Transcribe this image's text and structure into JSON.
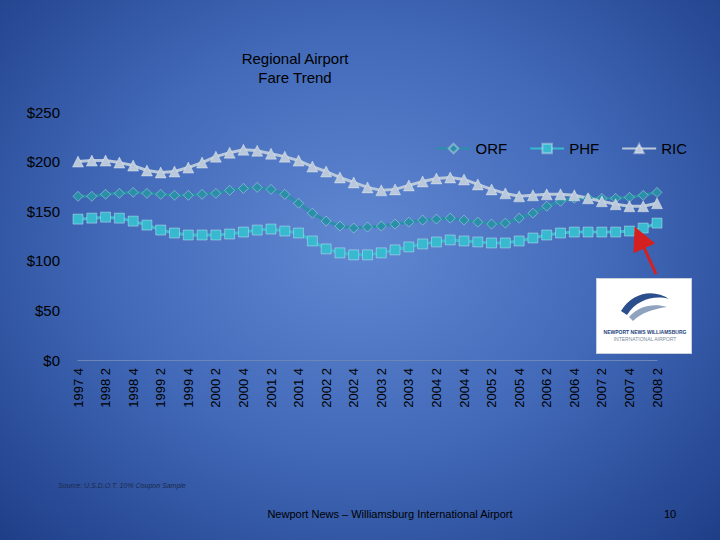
{
  "chart_data": {
    "type": "line",
    "title": "Regional Airport\nFare Trend",
    "categories": [
      "1997 4",
      null,
      "1998 2",
      null,
      "1998 4",
      null,
      "1999 2",
      null,
      "1999 4",
      null,
      "2000 2",
      null,
      "2000 4",
      null,
      "2001 2",
      null,
      "2001 4",
      null,
      "2002 2",
      null,
      "2002 4",
      null,
      "2003 2",
      null,
      "2003 4",
      null,
      "2004 2",
      null,
      "2004 4",
      null,
      "2005 2",
      null,
      "2005 4",
      null,
      "2006 2",
      null,
      "2006 4",
      null,
      "2007 2",
      null,
      "2007 4",
      null,
      "2008 2"
    ],
    "series": [
      {
        "name": "ORF",
        "color": "#2a8fa8",
        "marker": "diamond",
        "values": [
          165,
          165,
          167,
          168,
          169,
          168,
          167,
          166,
          166,
          167,
          168,
          171,
          173,
          174,
          172,
          167,
          158,
          148,
          140,
          135,
          133,
          134,
          135,
          137,
          139,
          141,
          142,
          143,
          141,
          139,
          137,
          138,
          143,
          148,
          155,
          160,
          163,
          163,
          163,
          163,
          164,
          166,
          169
        ]
      },
      {
        "name": "PHF",
        "color": "#38b9cf",
        "marker": "square",
        "values": [
          142,
          143,
          144,
          143,
          140,
          136,
          131,
          128,
          126,
          126,
          126,
          127,
          129,
          131,
          132,
          130,
          128,
          120,
          112,
          108,
          106,
          106,
          108,
          111,
          114,
          117,
          119,
          121,
          120,
          119,
          118,
          118,
          120,
          123,
          126,
          128,
          129,
          129,
          129,
          129,
          130,
          133,
          138
        ]
      },
      {
        "name": "RIC",
        "color": "#b9c8da",
        "marker": "triangle",
        "values": [
          200,
          201,
          201,
          199,
          196,
          191,
          189,
          190,
          194,
          199,
          205,
          209,
          212,
          211,
          208,
          205,
          201,
          195,
          190,
          184,
          179,
          174,
          171,
          172,
          176,
          180,
          183,
          184,
          182,
          177,
          172,
          168,
          165,
          166,
          167,
          167,
          166,
          163,
          160,
          157,
          155,
          155,
          158
        ]
      }
    ],
    "ylim": [
      0,
      250
    ],
    "yticks": [
      {
        "value": 0,
        "label": "$0"
      },
      {
        "value": 50,
        "label": "$50"
      },
      {
        "value": 100,
        "label": "$100"
      },
      {
        "value": 150,
        "label": "$150"
      },
      {
        "value": 200,
        "label": "$200"
      },
      {
        "value": 250,
        "label": "$250"
      }
    ],
    "grid": false,
    "legend": "upper right",
    "annotations": [
      "Source: U.S.D.O.T. 10% Coupon Sample",
      "Newport News – Williamsburg International Airport",
      "10",
      "NEWPORT NEWS WILLIAMSBURG",
      "INTERNATIONAL AIRPORT"
    ]
  }
}
